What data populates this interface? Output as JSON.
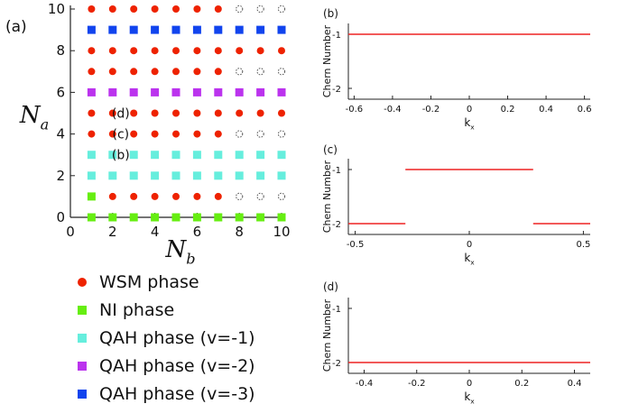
{
  "chart_data": [
    {
      "panel": "(a)",
      "type": "scatter",
      "xlabel": "N_b",
      "ylabel": "N_a",
      "xlim": [
        0,
        10
      ],
      "ylim": [
        0,
        10
      ],
      "xticks": [
        "0",
        "2",
        "4",
        "6",
        "8",
        "10"
      ],
      "yticks": [
        "0",
        "2",
        "4",
        "6",
        "8",
        "10"
      ],
      "legend": [
        {
          "label": "WSM phase",
          "color": "#ee2200",
          "marker": "circle"
        },
        {
          "label": "NI phase",
          "color": "#66ee11",
          "marker": "square"
        },
        {
          "label": "QAH phase (v=-1)",
          "color": "#66eedd",
          "marker": "square"
        },
        {
          "label": "QAH phase (v=-2)",
          "color": "#bb33ee",
          "marker": "square"
        },
        {
          "label": "QAH phase (v=-3)",
          "color": "#1144ee",
          "marker": "square"
        }
      ],
      "rows": [
        {
          "na": 0,
          "cells": "NNNNNNNNNN"
        },
        {
          "na": 1,
          "cells": "NWWWWWWooo"
        },
        {
          "na": 2,
          "cells": "QQQQQQQQQQ"
        },
        {
          "na": 3,
          "cells": "QQQQQQQQQQ"
        },
        {
          "na": 4,
          "cells": "WWWWWWWooo"
        },
        {
          "na": 5,
          "cells": "WWWWWWWWWW"
        },
        {
          "na": 6,
          "cells": "PPPPPPPPPP"
        },
        {
          "na": 7,
          "cells": "WWWWWWWooo"
        },
        {
          "na": 8,
          "cells": "WWWWWWWWWW"
        },
        {
          "na": 9,
          "cells": "BBBBBBBBBB"
        },
        {
          "na": 10,
          "cells": "WWWWWWWooo"
        }
      ],
      "annotations": [
        {
          "text": "(d)",
          "nb": 2,
          "na": 5
        },
        {
          "text": "(c)",
          "nb": 2,
          "na": 4
        },
        {
          "text": "(b)",
          "nb": 2,
          "na": 3
        }
      ]
    },
    {
      "panel": "(b)",
      "type": "line",
      "ylabel": "Chern Number",
      "xlabel": "k_x",
      "xlim": [
        -0.63,
        0.63
      ],
      "ylim": [
        -2.2,
        -0.8
      ],
      "xticks": [
        -0.6,
        -0.4,
        -0.2,
        0,
        0.2,
        0.4,
        0.6
      ],
      "xtick_labels": [
        "-0.6",
        "-0.4",
        "-0.2",
        "0",
        "0.2",
        "0.4",
        "0.6"
      ],
      "yticks": [
        -1,
        -2
      ],
      "ytick_labels": [
        "-1",
        "-2"
      ],
      "segments": [
        {
          "x": [
            -0.63,
            0.63
          ],
          "y": -1
        }
      ]
    },
    {
      "panel": "(c)",
      "type": "line",
      "ylabel": "Chern Number",
      "xlabel": "k_x",
      "xlim": [
        -0.53,
        0.53
      ],
      "ylim": [
        -2.2,
        -0.8
      ],
      "xticks": [
        -0.5,
        0,
        0.5
      ],
      "xtick_labels": [
        "-0.5",
        "0",
        "0.5"
      ],
      "yticks": [
        -1,
        -2
      ],
      "ytick_labels": [
        "-1",
        "-2"
      ],
      "segments": [
        {
          "x": [
            -0.53,
            -0.28
          ],
          "y": -2
        },
        {
          "x": [
            -0.28,
            0.28
          ],
          "y": -1
        },
        {
          "x": [
            0.28,
            0.53
          ],
          "y": -2
        }
      ]
    },
    {
      "panel": "(d)",
      "type": "line",
      "ylabel": "Chern Number",
      "xlabel": "k_x",
      "xlim": [
        -0.46,
        0.46
      ],
      "ylim": [
        -2.2,
        -0.8
      ],
      "xticks": [
        -0.4,
        -0.2,
        0,
        0.2,
        0.4
      ],
      "xtick_labels": [
        "-0.4",
        "-0.2",
        "0",
        "0.2",
        "0.4"
      ],
      "yticks": [
        -1,
        -2
      ],
      "ytick_labels": [
        "-1",
        "-2"
      ],
      "segments": [
        {
          "x": [
            -0.46,
            0.46
          ],
          "y": -2
        }
      ]
    }
  ],
  "colors": {
    "line": "#ee2222",
    "hollow_marker": "#555555"
  }
}
